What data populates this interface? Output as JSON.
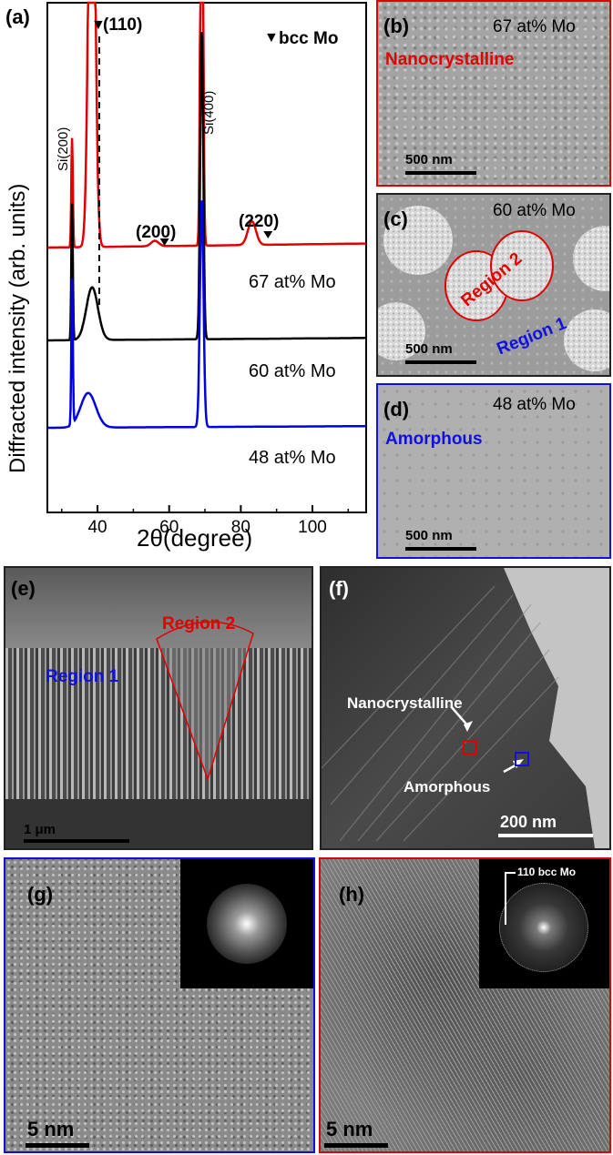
{
  "panel_a": {
    "label": "(a)",
    "legend": "bcc Mo",
    "ylabel": "Diffracted intensity (arb. units)",
    "xlabel": "2θ(degree)",
    "peaks": {
      "p110": "(110)",
      "p200": "(200)",
      "p220": "(220)",
      "si200": "Si(200)",
      "si400": "Si(400)"
    },
    "curve_labels": [
      "67 at% Mo",
      "60 at% Mo",
      "48 at% Mo"
    ]
  },
  "chart_data": {
    "type": "line",
    "xlabel": "2θ(degree)",
    "ylabel": "Diffracted intensity (arb. units)",
    "xlim": [
      26,
      115
    ],
    "x_ticks": [
      40,
      60,
      80,
      100
    ],
    "series": [
      {
        "name": "67 at% Mo",
        "color": "#e00000"
      },
      {
        "name": "60 at% Mo",
        "color": "#000000"
      },
      {
        "name": "48 at% Mo",
        "color": "#0000e0"
      }
    ],
    "markers": [
      {
        "label": "(110)",
        "x": 40.5
      },
      {
        "label": "(200)",
        "x": 58.7
      },
      {
        "label": "(220)",
        "x": 87.6
      }
    ]
  },
  "panel_b": {
    "label": "(b)",
    "composition": "67 at% Mo",
    "phase": "Nanocrystalline",
    "scale": "500 nm"
  },
  "panel_c": {
    "label": "(c)",
    "composition": "60 at% Mo",
    "region2": "Region 2",
    "region1": "Region 1",
    "scale": "500 nm"
  },
  "panel_d": {
    "label": "(d)",
    "composition": "48 at% Mo",
    "phase": "Amorphous",
    "scale": "500 nm"
  },
  "panel_e": {
    "label": "(e)",
    "region2": "Region 2",
    "region1": "Region 1",
    "scale": "1 μm"
  },
  "panel_f": {
    "label": "(f)",
    "nano": "Nanocrystalline",
    "amorph": "Amorphous",
    "scale": "200 nm"
  },
  "panel_g": {
    "label": "(g)",
    "scale": "5 nm"
  },
  "panel_h": {
    "label": "(h)",
    "fft_label": "110 bcc Mo",
    "scale": "5 nm"
  }
}
